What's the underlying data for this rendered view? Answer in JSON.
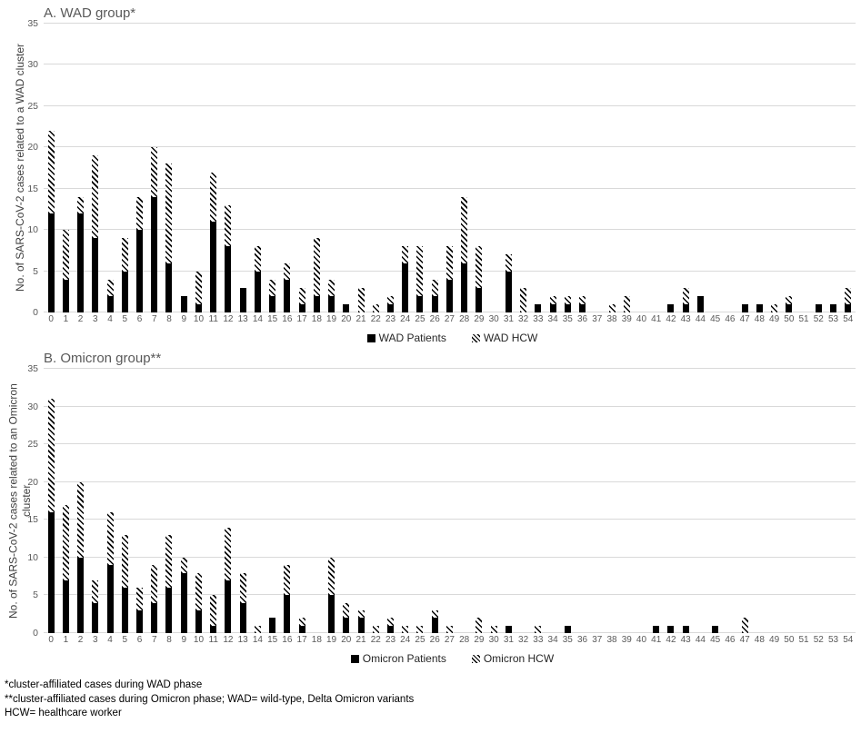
{
  "colors": {
    "bar_fill": "#000000",
    "gridline": "#d9d9d9",
    "tick_label": "#595959",
    "chart_title": "#595959"
  },
  "footnotes": [
    "*cluster-affiliated cases during WAD phase",
    "**cluster-affiliated cases during Omicron phase; WAD= wild-type, Delta Omicron variants",
    "HCW= healthcare worker"
  ],
  "chart_data": [
    {
      "type": "bar",
      "stacked": true,
      "title": "A. WAD group*",
      "xlabel": "",
      "ylabel": "No. of SARS-CoV-2 cases related to a WAD cluster",
      "ylim": [
        0,
        35
      ],
      "ytick_step": 5,
      "grid": true,
      "legend_position": "bottom",
      "categories": [
        0,
        1,
        2,
        3,
        4,
        5,
        6,
        7,
        8,
        9,
        10,
        11,
        12,
        13,
        14,
        15,
        16,
        17,
        18,
        19,
        20,
        21,
        22,
        23,
        24,
        25,
        26,
        27,
        28,
        29,
        30,
        31,
        32,
        33,
        34,
        35,
        36,
        37,
        38,
        39,
        40,
        41,
        42,
        43,
        44,
        45,
        46,
        47,
        48,
        49,
        50,
        51,
        52,
        53,
        54
      ],
      "series": [
        {
          "name": "WAD Patients",
          "style": "solid-black",
          "values": [
            12,
            4,
            12,
            9,
            2,
            5,
            10,
            14,
            6,
            2,
            1,
            11,
            8,
            3,
            5,
            2,
            4,
            1,
            2,
            2,
            1,
            0,
            0,
            1,
            6,
            2,
            2,
            4,
            6,
            3,
            0,
            5,
            0,
            1,
            1,
            1,
            1,
            0,
            0,
            0,
            0,
            0,
            1,
            1,
            2,
            0,
            0,
            1,
            1,
            0,
            1,
            0,
            1,
            1,
            1
          ]
        },
        {
          "name": "WAD HCW",
          "style": "diagonal-hatch",
          "values": [
            10,
            6,
            2,
            10,
            2,
            4,
            4,
            6,
            12,
            0,
            4,
            6,
            5,
            0,
            3,
            2,
            2,
            2,
            7,
            2,
            0,
            3,
            1,
            1,
            2,
            6,
            2,
            4,
            8,
            5,
            0,
            2,
            3,
            0,
            1,
            1,
            1,
            0,
            1,
            2,
            0,
            0,
            0,
            2,
            0,
            0,
            0,
            0,
            0,
            1,
            1,
            0,
            0,
            0,
            2
          ]
        }
      ]
    },
    {
      "type": "bar",
      "stacked": true,
      "title": "B. Omicron group**",
      "xlabel": "",
      "ylabel": "No. of SARS-CoV-2 cases related to an Omicron cluster",
      "ylim": [
        0,
        35
      ],
      "ytick_step": 5,
      "grid": true,
      "legend_position": "bottom",
      "categories": [
        0,
        1,
        2,
        3,
        4,
        5,
        6,
        7,
        8,
        9,
        10,
        11,
        12,
        13,
        14,
        15,
        16,
        17,
        18,
        19,
        20,
        21,
        22,
        23,
        24,
        25,
        26,
        27,
        28,
        29,
        30,
        31,
        32,
        33,
        34,
        35,
        36,
        37,
        38,
        39,
        40,
        41,
        42,
        43,
        44,
        45,
        46,
        47,
        48,
        49,
        50,
        51,
        52,
        53,
        54
      ],
      "series": [
        {
          "name": "Omicron Patients",
          "style": "solid-black",
          "values": [
            16,
            7,
            10,
            4,
            9,
            6,
            3,
            4,
            6,
            8,
            3,
            1,
            7,
            4,
            0,
            2,
            5,
            1,
            0,
            5,
            2,
            2,
            0,
            1,
            0,
            0,
            2,
            0,
            0,
            0,
            0,
            1,
            0,
            0,
            0,
            1,
            0,
            0,
            0,
            0,
            0,
            1,
            1,
            1,
            0,
            1,
            0,
            0,
            0,
            0,
            0,
            0,
            0,
            0,
            0
          ]
        },
        {
          "name": "Omicron HCW",
          "style": "diagonal-hatch",
          "values": [
            15,
            10,
            10,
            3,
            7,
            7,
            3,
            5,
            7,
            2,
            5,
            4,
            7,
            4,
            1,
            0,
            4,
            1,
            0,
            5,
            2,
            1,
            1,
            1,
            1,
            1,
            1,
            1,
            0,
            2,
            1,
            0,
            0,
            1,
            0,
            0,
            0,
            0,
            0,
            0,
            0,
            0,
            0,
            0,
            0,
            0,
            0,
            2,
            0,
            0,
            0,
            0,
            0,
            0,
            0
          ]
        }
      ]
    }
  ]
}
